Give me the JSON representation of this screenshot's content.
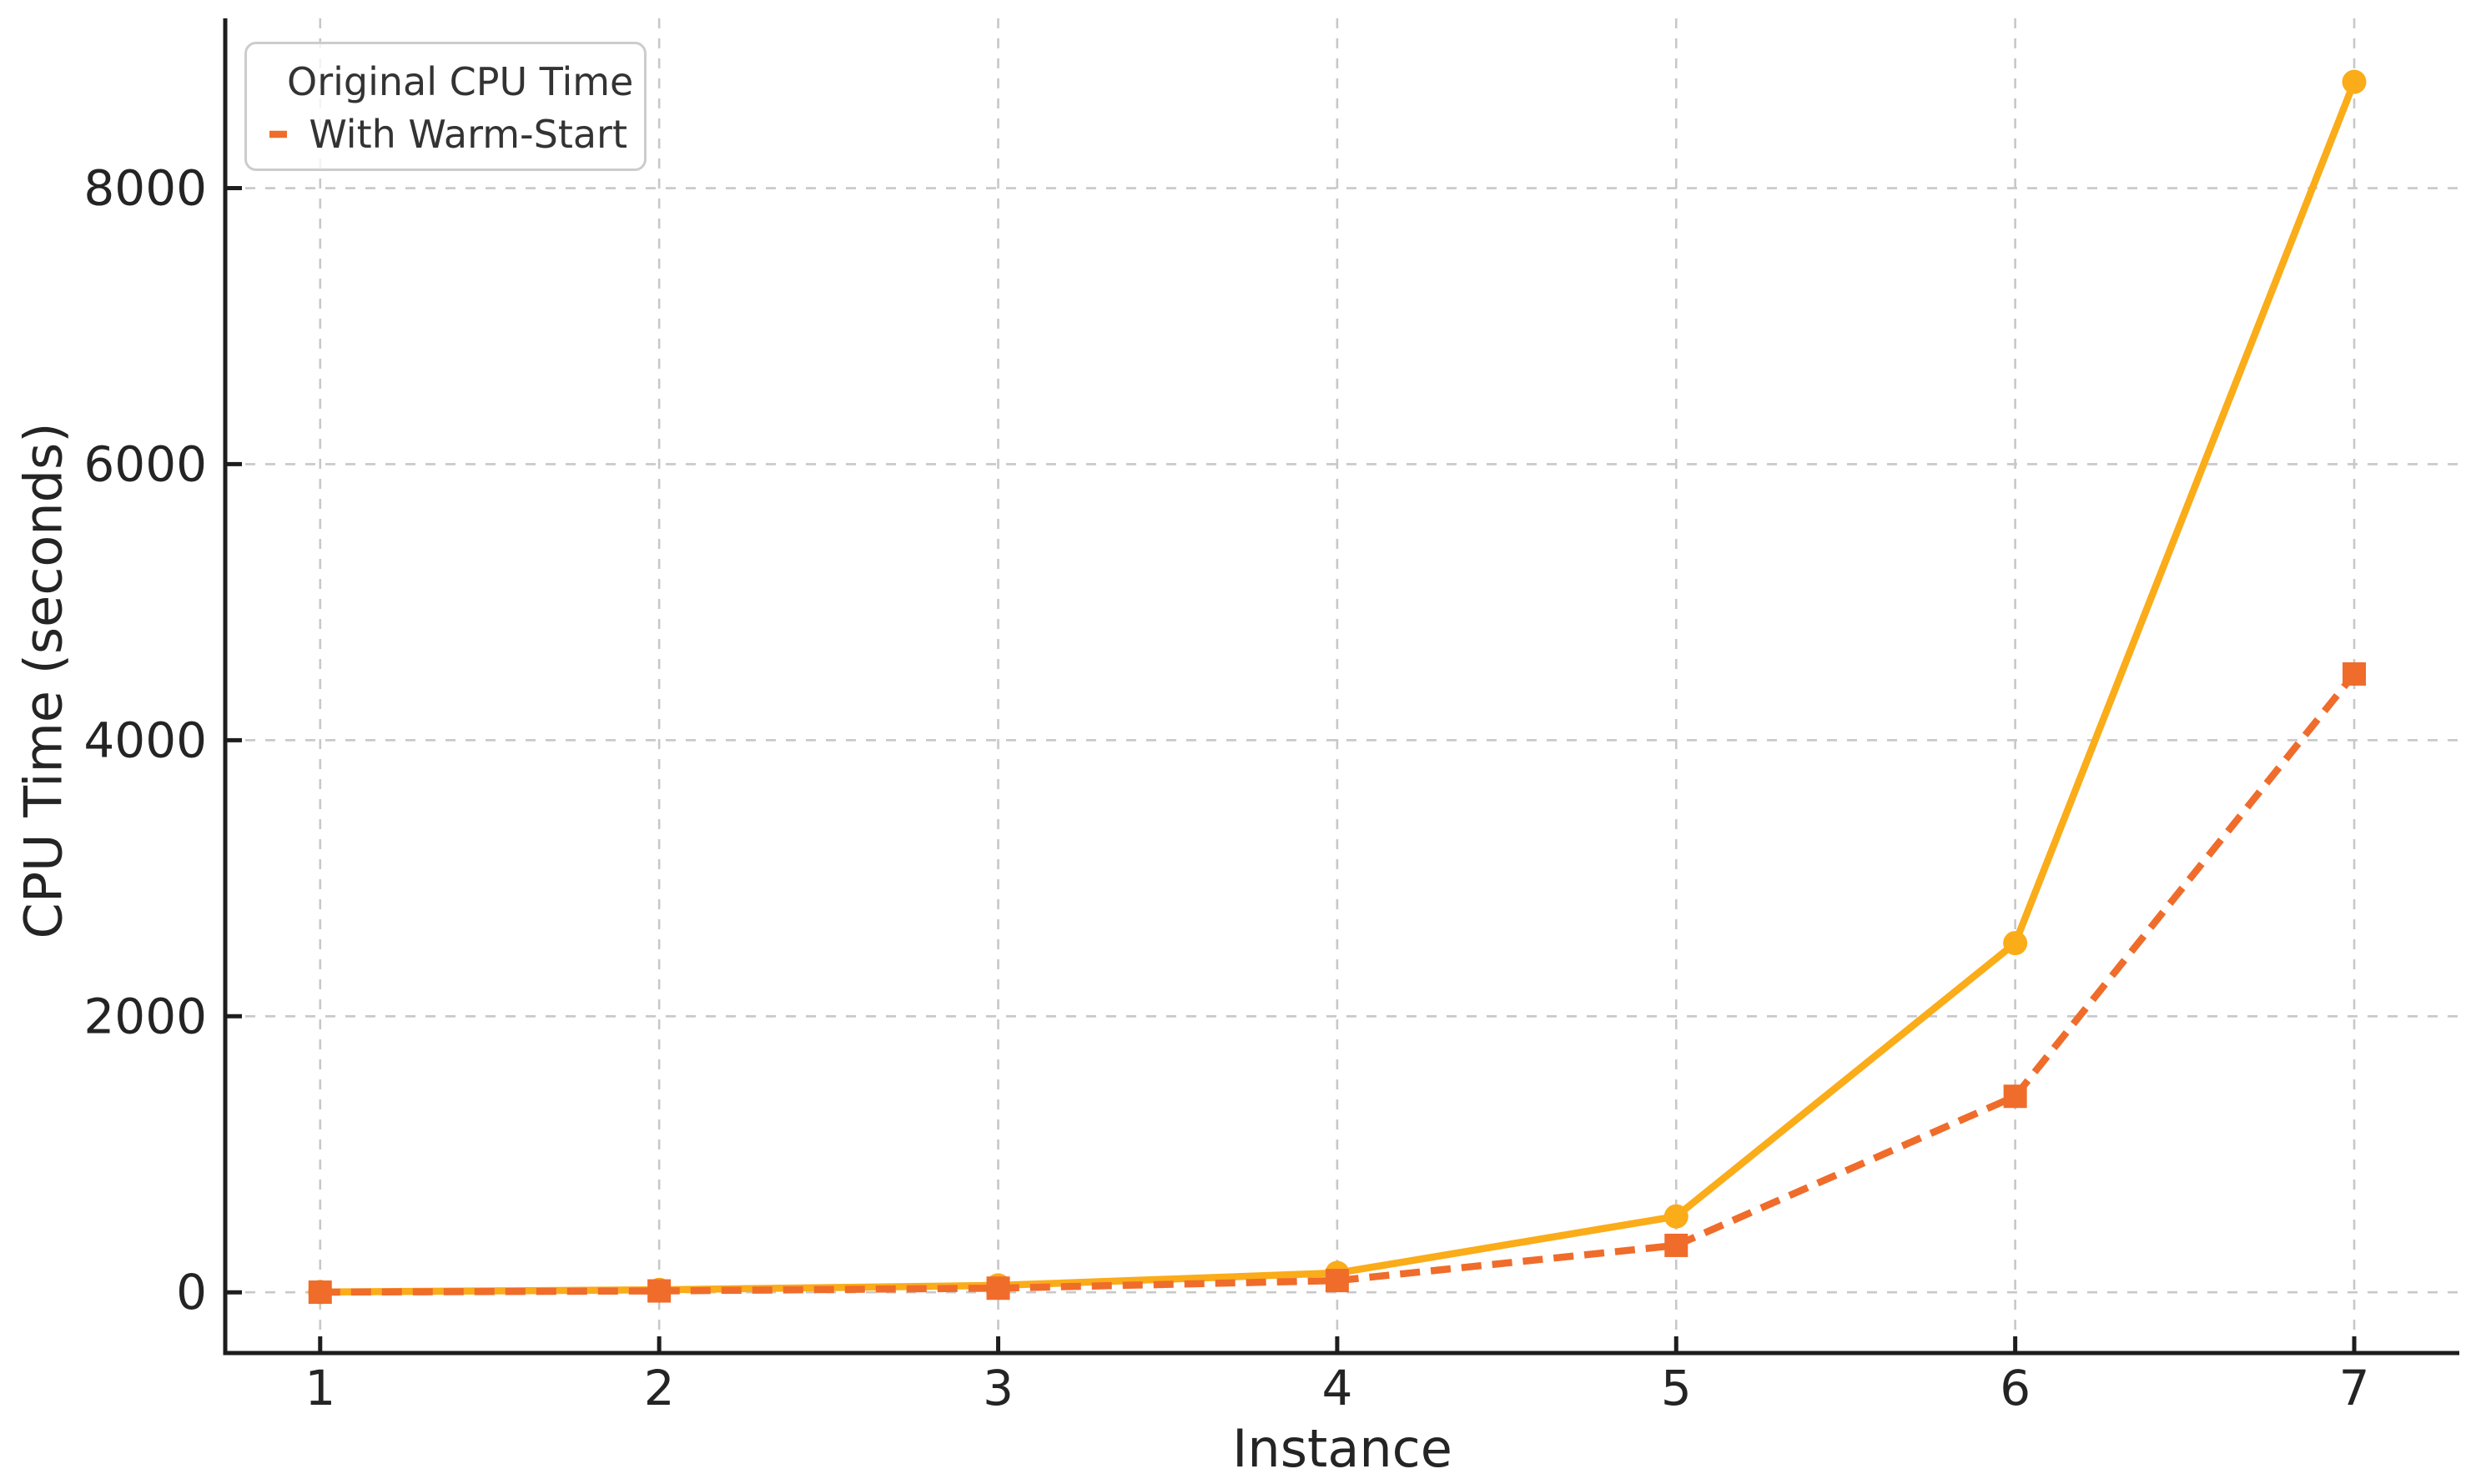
{
  "figure": {
    "background": "#ffffff",
    "text_color": "#242424",
    "spine_color": "#1d1d1d",
    "grid_color": "#c8c8c8",
    "legend_border_color": "#cccccc"
  },
  "chart_data": {
    "type": "line",
    "title": "",
    "xlabel": "Instance",
    "ylabel": "CPU Time (seconds)",
    "x": [
      1,
      2,
      3,
      4,
      5,
      6,
      7
    ],
    "series": [
      {
        "name": "Original CPU Time",
        "color": "#FAAC19",
        "line_style": "solid",
        "marker": "circle",
        "values": [
          2,
          18,
          50,
          140,
          550,
          2530,
          8770
        ]
      },
      {
        "name": "With Warm-Start",
        "color": "#EF6C2B",
        "line_style": "dashed",
        "marker": "square",
        "values": [
          1,
          10,
          30,
          85,
          340,
          1420,
          4480
        ]
      }
    ],
    "xticks": [
      1,
      2,
      3,
      4,
      5,
      6,
      7
    ],
    "yticks": [
      0,
      2000,
      4000,
      6000,
      8000
    ],
    "xlim": [
      0.72,
      7.31
    ],
    "ylim": [
      -440,
      9230
    ],
    "grid": true,
    "grid_style": "dashed",
    "legend_position": "upper-left",
    "tick_direction": "in"
  }
}
